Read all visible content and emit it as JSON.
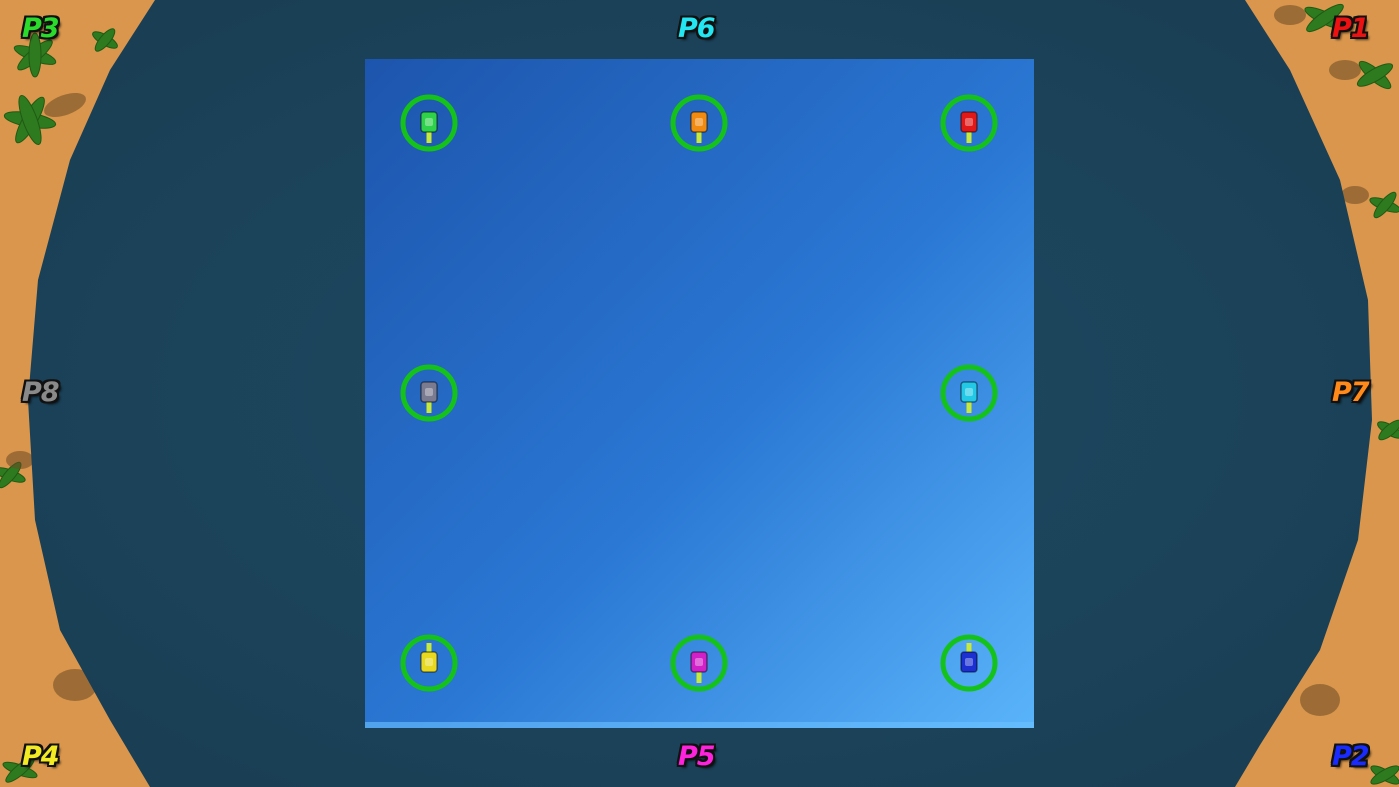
{
  "players": [
    {
      "label": "P1",
      "color": "#ee1111",
      "tank_color": "#e01818"
    },
    {
      "label": "P2",
      "color": "#1a2bff",
      "tank_color": "#1c2fd0"
    },
    {
      "label": "P3",
      "color": "#2bdb2b",
      "tank_color": "#2fd04a"
    },
    {
      "label": "P4",
      "color": "#f2ea22",
      "tank_color": "#e8d820"
    },
    {
      "label": "P5",
      "color": "#ff22dd",
      "tank_color": "#d020c8"
    },
    {
      "label": "P6",
      "color": "#22e6f2",
      "tank_color": "#f08a10"
    },
    {
      "label": "P7",
      "color": "#ff8a1a",
      "tank_color": "#22c8e6"
    },
    {
      "label": "P8",
      "color": "#8a8a8a",
      "tank_color": "#7a7a90"
    }
  ],
  "colors": {
    "sand": "#d9964c",
    "water": "#1e4a60",
    "arena_top": "#1f5fb8",
    "arena_bottom": "#4aa6f2",
    "spawn_ring": "#15c21a",
    "turret": "#c8e83a"
  }
}
